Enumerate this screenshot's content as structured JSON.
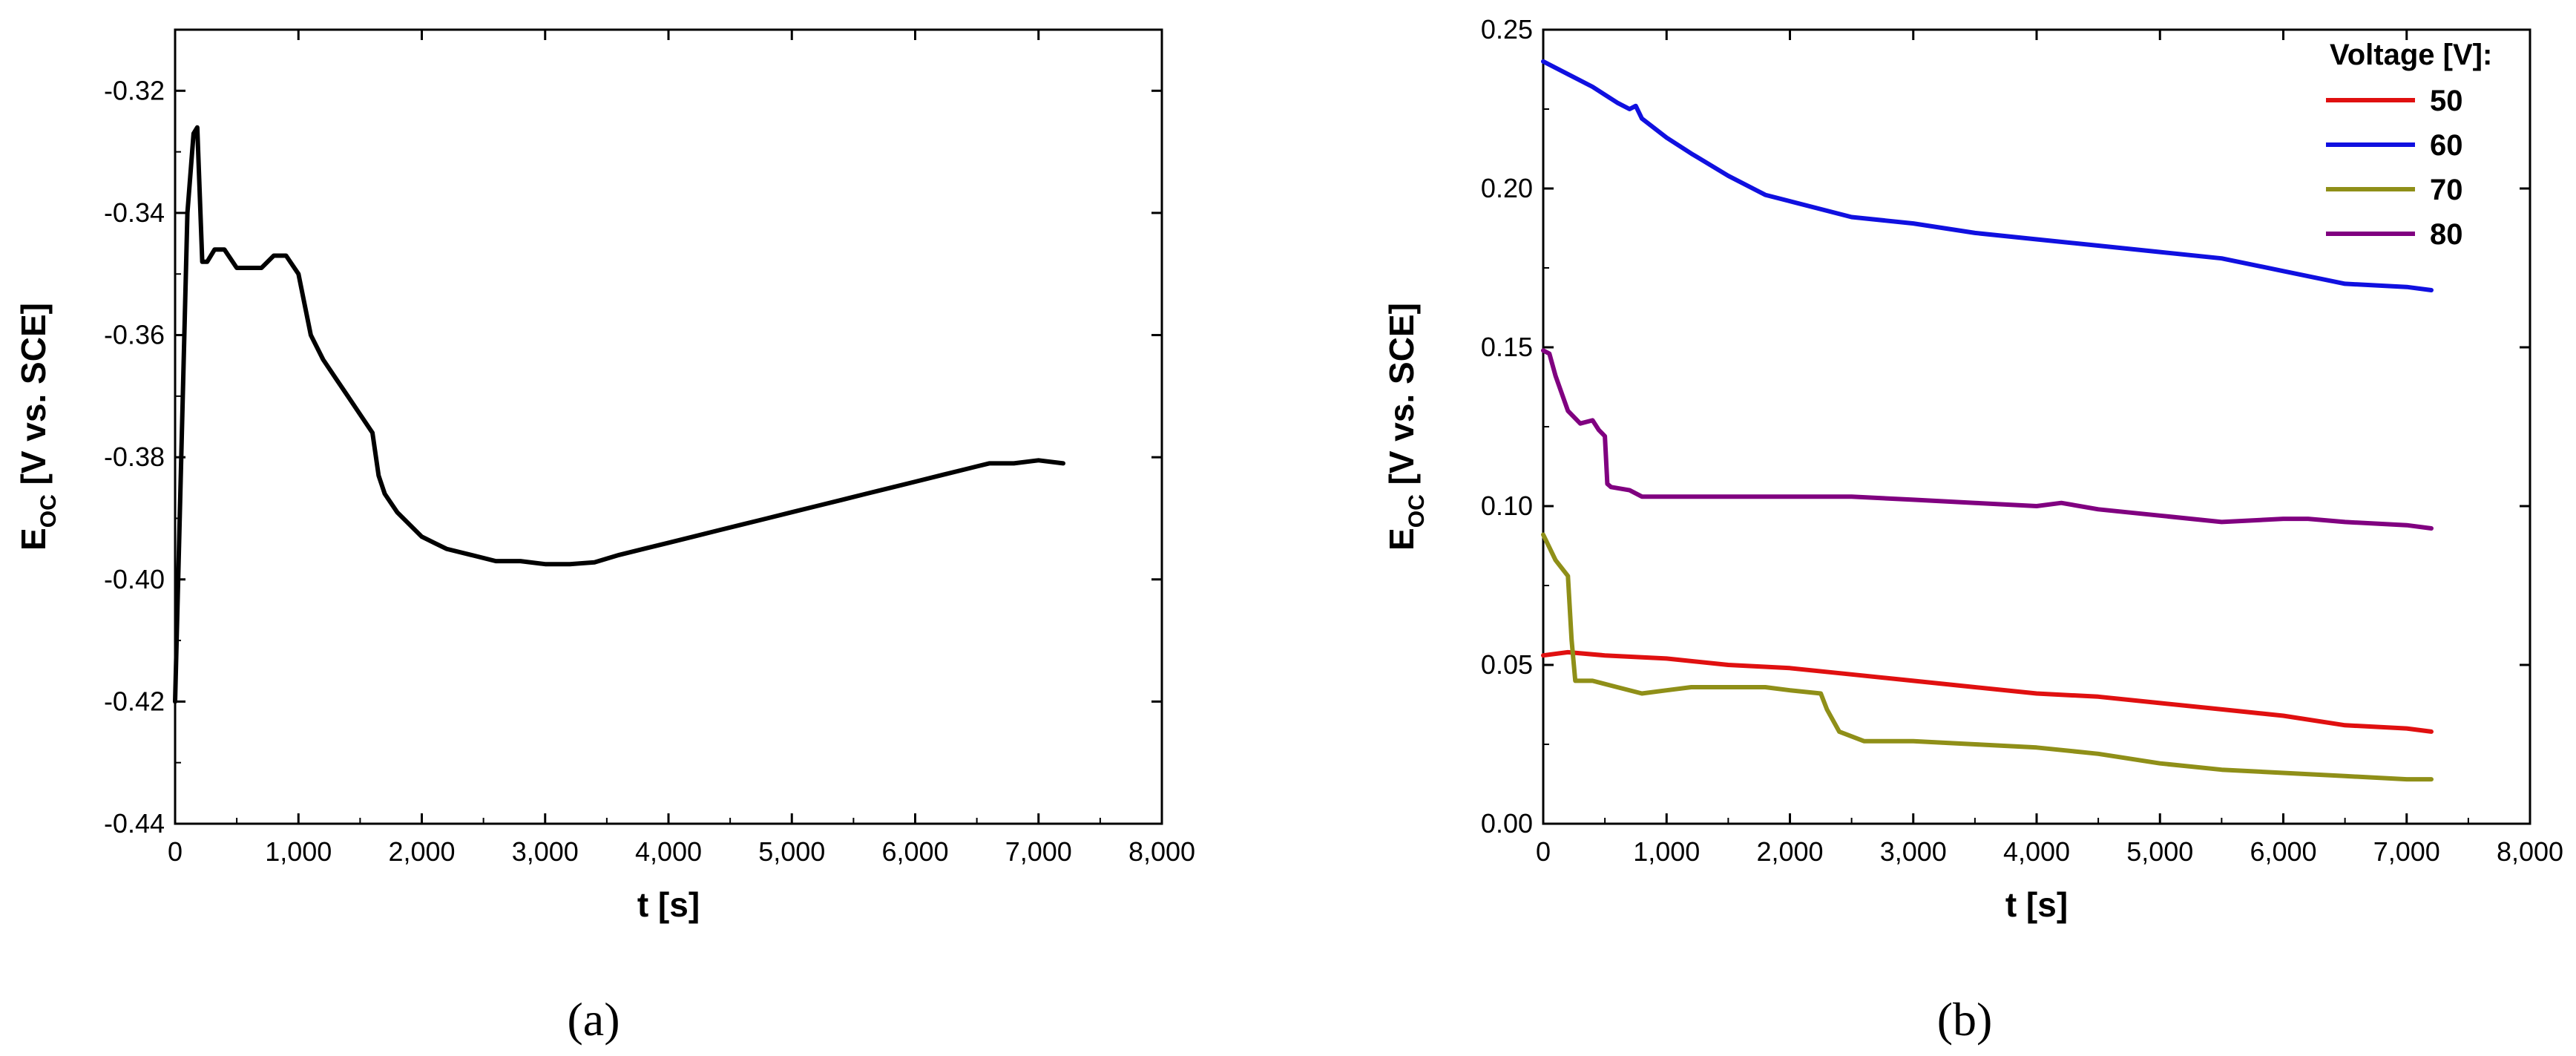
{
  "chart_data": [
    {
      "panel": "(a)",
      "type": "line",
      "xlabel": "t [s]",
      "ylabel_main": "E",
      "ylabel_sub": "OC",
      "ylabel_rest": " [V vs. SCE]",
      "xlim": [
        0,
        8000
      ],
      "ylim": [
        -0.44,
        -0.31
      ],
      "xticks": [
        0,
        1000,
        2000,
        3000,
        4000,
        5000,
        6000,
        7000,
        8000
      ],
      "xtick_labels": [
        "0",
        "1,000",
        "2,000",
        "3,000",
        "4,000",
        "5,000",
        "6,000",
        "7,000",
        "8,000"
      ],
      "yticks": [
        -0.44,
        -0.42,
        -0.4,
        -0.38,
        -0.36,
        -0.34,
        -0.32
      ],
      "ytick_labels": [
        "-0.44",
        "-0.42",
        "-0.40",
        "-0.38",
        "-0.36",
        "-0.34",
        "-0.32"
      ],
      "series": [
        {
          "color": "#000000",
          "x": [
            0,
            50,
            100,
            150,
            180,
            220,
            260,
            320,
            400,
            500,
            600,
            700,
            800,
            900,
            1000,
            1050,
            1100,
            1200,
            1300,
            1400,
            1500,
            1600,
            1650,
            1700,
            1800,
            1900,
            2000,
            2100,
            2200,
            2400,
            2600,
            2800,
            3000,
            3200,
            3400,
            3600,
            3800,
            4000,
            4200,
            4400,
            4600,
            4800,
            5000,
            5200,
            5400,
            5600,
            5800,
            6000,
            6200,
            6400,
            6500,
            6600,
            6800,
            7000,
            7200
          ],
          "y": [
            -0.42,
            -0.38,
            -0.34,
            -0.327,
            -0.326,
            -0.348,
            -0.348,
            -0.346,
            -0.346,
            -0.349,
            -0.349,
            -0.349,
            -0.347,
            -0.347,
            -0.35,
            -0.355,
            -0.36,
            -0.364,
            -0.367,
            -0.37,
            -0.373,
            -0.376,
            -0.383,
            -0.386,
            -0.389,
            -0.391,
            -0.393,
            -0.394,
            -0.395,
            -0.396,
            -0.397,
            -0.397,
            -0.3975,
            -0.3975,
            -0.3972,
            -0.396,
            -0.395,
            -0.394,
            -0.393,
            -0.392,
            -0.391,
            -0.39,
            -0.389,
            -0.388,
            -0.387,
            -0.386,
            -0.385,
            -0.384,
            -0.383,
            -0.382,
            -0.3815,
            -0.381,
            -0.381,
            -0.3805,
            -0.381
          ]
        }
      ]
    },
    {
      "panel": "(b)",
      "type": "line",
      "xlabel": "t [s]",
      "ylabel_main": "E",
      "ylabel_sub": "OC",
      "ylabel_rest": " [V vs. SCE]",
      "xlim": [
        0,
        8000
      ],
      "ylim": [
        0,
        0.25
      ],
      "xticks": [
        0,
        1000,
        2000,
        3000,
        4000,
        5000,
        6000,
        7000,
        8000
      ],
      "xtick_labels": [
        "0",
        "1,000",
        "2,000",
        "3,000",
        "4,000",
        "5,000",
        "6,000",
        "7,000",
        "8,000"
      ],
      "yticks": [
        0,
        0.05,
        0.1,
        0.15,
        0.2,
        0.25
      ],
      "ytick_labels": [
        "0.00",
        "0.05",
        "0.10",
        "0.15",
        "0.20",
        "0.25"
      ],
      "legend_title": "Voltage [V]:",
      "legend_position": "top-right",
      "series": [
        {
          "name": "50",
          "color": "#e01010",
          "x": [
            0,
            200,
            500,
            1000,
            1500,
            2000,
            2500,
            3000,
            3500,
            4000,
            4500,
            5000,
            5500,
            6000,
            6500,
            7000,
            7200
          ],
          "y": [
            0.053,
            0.054,
            0.053,
            0.052,
            0.05,
            0.049,
            0.047,
            0.045,
            0.043,
            0.041,
            0.04,
            0.038,
            0.036,
            0.034,
            0.031,
            0.03,
            0.029
          ]
        },
        {
          "name": "60",
          "color": "#1010e0",
          "x": [
            0,
            200,
            400,
            600,
            700,
            750,
            800,
            1000,
            1200,
            1500,
            1800,
            2000,
            2500,
            3000,
            3500,
            4000,
            4500,
            5000,
            5500,
            6000,
            6500,
            7000,
            7200
          ],
          "y": [
            0.24,
            0.236,
            0.232,
            0.227,
            0.225,
            0.226,
            0.222,
            0.216,
            0.211,
            0.204,
            0.198,
            0.196,
            0.191,
            0.189,
            0.186,
            0.184,
            0.182,
            0.18,
            0.178,
            0.174,
            0.17,
            0.169,
            0.168
          ]
        },
        {
          "name": "70",
          "color": "#8f8f18",
          "x": [
            0,
            100,
            200,
            230,
            260,
            400,
            600,
            800,
            1000,
            1200,
            1500,
            1800,
            2000,
            2250,
            2300,
            2400,
            2600,
            2800,
            3000,
            3500,
            4000,
            4500,
            5000,
            5500,
            6000,
            6500,
            7000,
            7200
          ],
          "y": [
            0.091,
            0.083,
            0.078,
            0.058,
            0.045,
            0.045,
            0.043,
            0.041,
            0.042,
            0.043,
            0.043,
            0.043,
            0.042,
            0.041,
            0.036,
            0.029,
            0.026,
            0.026,
            0.026,
            0.025,
            0.024,
            0.022,
            0.019,
            0.017,
            0.016,
            0.015,
            0.014,
            0.014
          ]
        },
        {
          "name": "80",
          "color": "#800080",
          "x": [
            0,
            50,
            100,
            200,
            300,
            400,
            450,
            500,
            520,
            550,
            700,
            800,
            1000,
            1500,
            2000,
            2500,
            3000,
            3500,
            4000,
            4200,
            4500,
            5000,
            5500,
            6000,
            6200,
            6500,
            7000,
            7200
          ],
          "y": [
            0.149,
            0.148,
            0.141,
            0.13,
            0.126,
            0.127,
            0.124,
            0.122,
            0.107,
            0.106,
            0.105,
            0.103,
            0.103,
            0.103,
            0.103,
            0.103,
            0.102,
            0.101,
            0.1,
            0.101,
            0.099,
            0.097,
            0.095,
            0.096,
            0.096,
            0.095,
            0.094,
            0.093
          ]
        }
      ]
    }
  ]
}
